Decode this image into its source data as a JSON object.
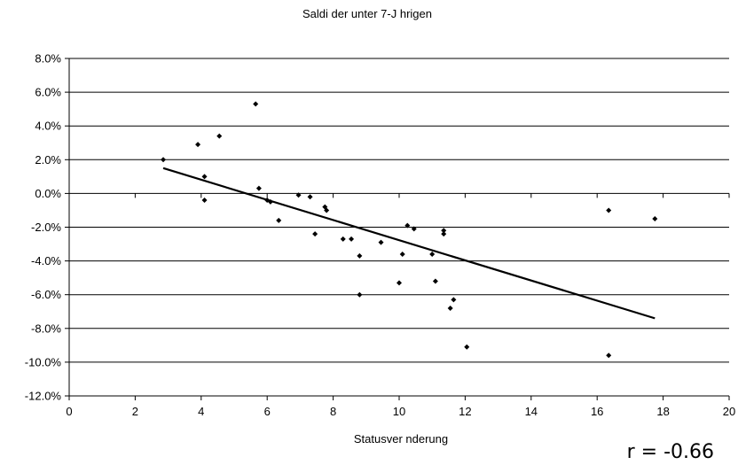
{
  "chart_data": {
    "type": "scatter",
    "title": "Saldi der unter 7-J   hrigen",
    "xlabel": "Statusver   nderung",
    "ylabel": "",
    "xlim": [
      0,
      20
    ],
    "ylim": [
      -12,
      8
    ],
    "x_ticks": [
      "0",
      "2",
      "4",
      "6",
      "8",
      "10",
      "12",
      "14",
      "16",
      "18",
      "20"
    ],
    "y_ticks": [
      "8.0%",
      "6.0%",
      "4.0%",
      "2.0%",
      "0.0%",
      "-2.0%",
      "-4.0%",
      "-6.0%",
      "-8.0%",
      "-10.0%",
      "-12.0%"
    ],
    "grid": "horizontal",
    "legend": "none",
    "marker": "diamond",
    "marker_color": "#000000",
    "points": [
      {
        "x": 2.85,
        "y": 2.0
      },
      {
        "x": 3.9,
        "y": 2.9
      },
      {
        "x": 4.1,
        "y": 1.0
      },
      {
        "x": 4.1,
        "y": -0.4
      },
      {
        "x": 4.55,
        "y": 3.4
      },
      {
        "x": 5.65,
        "y": 5.3
      },
      {
        "x": 5.75,
        "y": 0.3
      },
      {
        "x": 6.0,
        "y": -0.4
      },
      {
        "x": 6.1,
        "y": -0.5
      },
      {
        "x": 6.35,
        "y": -1.6
      },
      {
        "x": 6.95,
        "y": -0.1
      },
      {
        "x": 7.3,
        "y": -0.2
      },
      {
        "x": 7.45,
        "y": -2.4
      },
      {
        "x": 7.75,
        "y": -0.8
      },
      {
        "x": 7.8,
        "y": -1.0
      },
      {
        "x": 8.3,
        "y": -2.7
      },
      {
        "x": 8.55,
        "y": -2.7
      },
      {
        "x": 8.8,
        "y": -3.7
      },
      {
        "x": 8.8,
        "y": -6.0
      },
      {
        "x": 9.45,
        "y": -2.9
      },
      {
        "x": 10.0,
        "y": -5.3
      },
      {
        "x": 10.1,
        "y": -3.6
      },
      {
        "x": 10.25,
        "y": -1.9
      },
      {
        "x": 10.45,
        "y": -2.1
      },
      {
        "x": 11.0,
        "y": -3.6
      },
      {
        "x": 11.1,
        "y": -5.2
      },
      {
        "x": 11.35,
        "y": -2.2
      },
      {
        "x": 11.35,
        "y": -2.4
      },
      {
        "x": 11.55,
        "y": -6.8
      },
      {
        "x": 11.65,
        "y": -6.3
      },
      {
        "x": 12.05,
        "y": -9.1
      },
      {
        "x": 16.35,
        "y": -1.0
      },
      {
        "x": 16.35,
        "y": -9.6
      },
      {
        "x": 17.75,
        "y": -1.5
      }
    ],
    "trendline": {
      "type": "linear",
      "color": "#000000",
      "points": [
        {
          "x": 2.85,
          "y": 1.5
        },
        {
          "x": 17.75,
          "y": -7.4
        }
      ]
    },
    "annotation": "r = -0.66"
  }
}
